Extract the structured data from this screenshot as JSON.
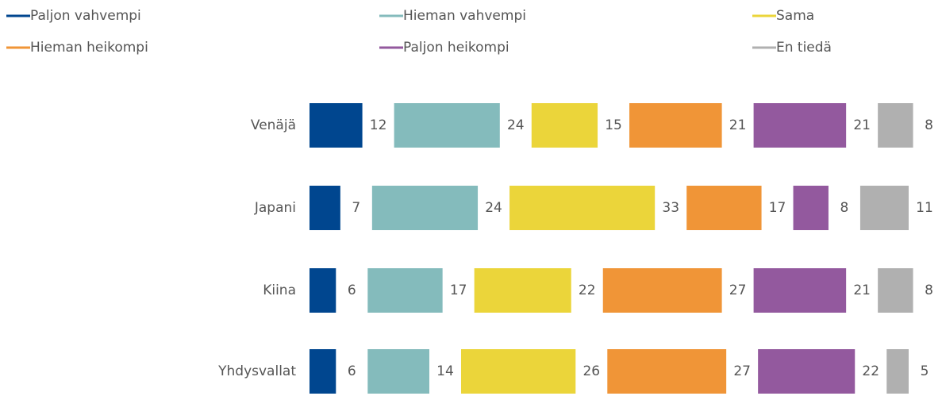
{
  "chart_data": {
    "type": "bar",
    "orientation": "horizontal",
    "stacked": true,
    "categories": [
      "Venäjä",
      "Japani",
      "Kiina",
      "Yhdysvallat"
    ],
    "series": [
      {
        "name": "Paljon vahvempi",
        "color": "#00468f",
        "values": [
          12,
          7,
          6,
          6
        ]
      },
      {
        "name": "Hieman vahvempi",
        "color": "#84bbbc",
        "values": [
          24,
          24,
          17,
          14
        ]
      },
      {
        "name": "Sama",
        "color": "#ebd53a",
        "values": [
          15,
          33,
          22,
          26
        ]
      },
      {
        "name": "Hieman heikompi",
        "color": "#f09537",
        "values": [
          21,
          17,
          27,
          27
        ]
      },
      {
        "name": "Paljon heikompi",
        "color": "#93599e",
        "values": [
          21,
          8,
          21,
          22
        ]
      },
      {
        "name": "En tiedä",
        "color": "#b0b0b0",
        "values": [
          8,
          11,
          8,
          5
        ]
      }
    ],
    "legend": "top"
  }
}
